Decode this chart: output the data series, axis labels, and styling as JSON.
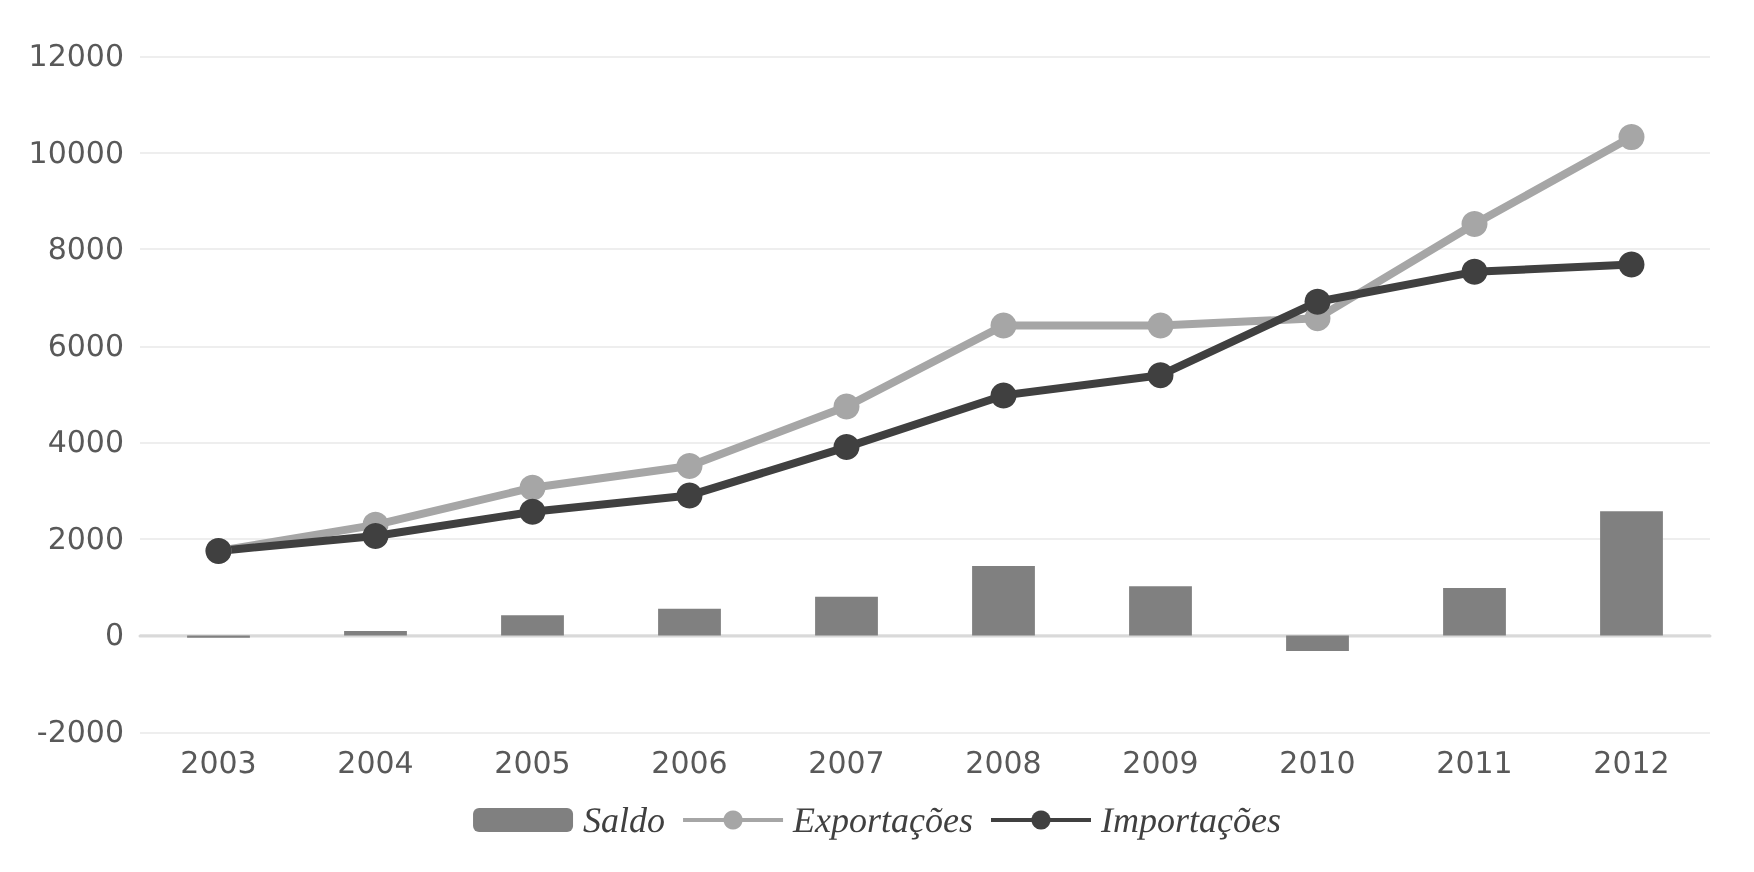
{
  "chart_data": {
    "type": "line",
    "categories": [
      "2003",
      "2004",
      "2005",
      "2006",
      "2007",
      "2008",
      "2009",
      "2010",
      "2011",
      "2012"
    ],
    "series": [
      {
        "name": "Saldo",
        "type": "bar",
        "color": "#808080",
        "values": [
          -50,
          90,
          420,
          550,
          800,
          1440,
          1020,
          -320,
          980,
          2570
        ]
      },
      {
        "name": "Exportações",
        "color": "#a6a6a6",
        "values": [
          1750,
          2290,
          3060,
          3510,
          4740,
          6420,
          6420,
          6570,
          8520,
          10320
        ]
      },
      {
        "name": "Importações",
        "color": "#404040",
        "values": [
          1750,
          2060,
          2560,
          2900,
          3900,
          4970,
          5390,
          6910,
          7530,
          7680
        ]
      }
    ],
    "ylim": [
      -2000,
      12000
    ],
    "yticks": [
      -2000,
      0,
      2000,
      4000,
      6000,
      8000,
      10000,
      12000
    ],
    "grid": "y",
    "legend": "bottom",
    "marker": "circle",
    "line_style": "solid"
  }
}
